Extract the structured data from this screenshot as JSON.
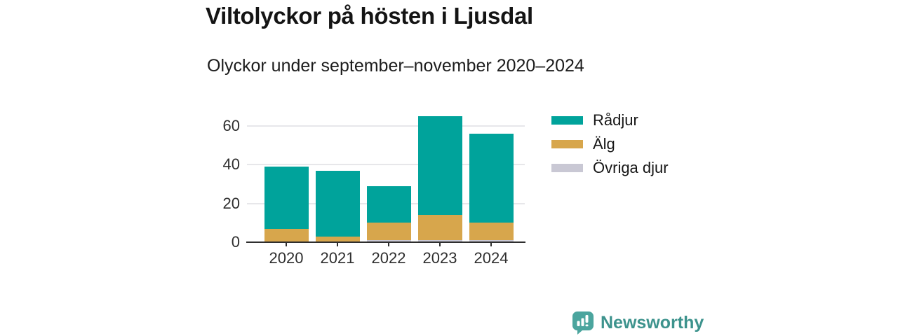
{
  "header": {
    "title": "Viltolyckor på hösten i Ljusdal",
    "subtitle": "Olyckor under september–november 2020–2024"
  },
  "chart_data": {
    "type": "bar",
    "stacked": true,
    "title": "Viltolyckor på hösten i Ljusdal",
    "subtitle": "Olyckor under september–november 2020–2024",
    "categories": [
      "2020",
      "2021",
      "2022",
      "2023",
      "2024"
    ],
    "series": [
      {
        "name": "Rådjur",
        "color": "#00a39b",
        "values": [
          32,
          34,
          19,
          51,
          46
        ]
      },
      {
        "name": "Älg",
        "color": "#d7a64c",
        "values": [
          7,
          3,
          9,
          13,
          9
        ]
      },
      {
        "name": "Övriga djur",
        "color": "#c9c8d4",
        "values": [
          0,
          0,
          1,
          1,
          1
        ]
      }
    ],
    "stack_order_bottom_to_top": [
      "Övriga djur",
      "Älg",
      "Rådjur"
    ],
    "totals": [
      39,
      37,
      29,
      65,
      56
    ],
    "yticks": [
      0,
      20,
      40,
      60
    ],
    "ylim": [
      0,
      70
    ],
    "xlabel": "",
    "ylabel": "",
    "grid": "horizontal-only",
    "legend_position": "right"
  },
  "legend": {
    "items": [
      {
        "label": "Rådjur",
        "color": "#00a39b"
      },
      {
        "label": "Älg",
        "color": "#d7a64c"
      },
      {
        "label": "Övriga djur",
        "color": "#c9c8d4"
      }
    ]
  },
  "footer": {
    "brand_name": "Newsworthy",
    "brand_text_color": "#3d938d",
    "logo_bubble_color": "#4ba59e",
    "logo_icon": "speech-bubble-bar-chart-exclamation"
  },
  "style": {
    "grid_color": "#e7e7ea",
    "axis_color": "#2e2e2e",
    "tick_label_color": "#2e2e2e",
    "title_color": "#141414"
  }
}
